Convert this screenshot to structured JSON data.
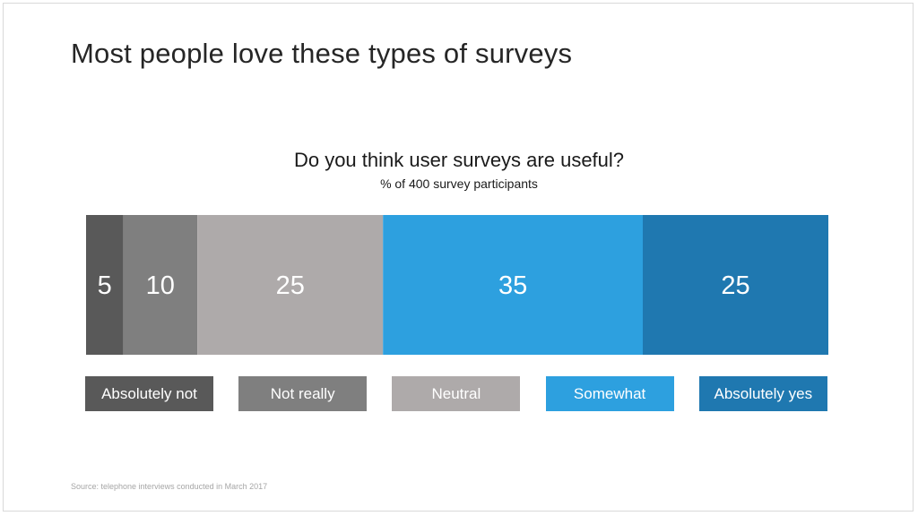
{
  "page": {
    "title": "Most people love these types of surveys",
    "source": "Source: telephone interviews conducted in March 2017"
  },
  "chart_data": {
    "type": "bar",
    "orientation": "horizontal-stacked-100",
    "title": "Do you think user surveys are useful?",
    "subtitle": "% of 400 survey participants",
    "categories": [
      "Absolutely not",
      "Not really",
      "Neutral",
      "Somewhat",
      "Absolutely yes"
    ],
    "values": [
      5,
      10,
      25,
      35,
      25
    ],
    "colors": [
      "#595959",
      "#7f7f7f",
      "#aeaaaa",
      "#2da0df",
      "#1f78b0"
    ],
    "legend_position": "bottom",
    "grid": false
  }
}
